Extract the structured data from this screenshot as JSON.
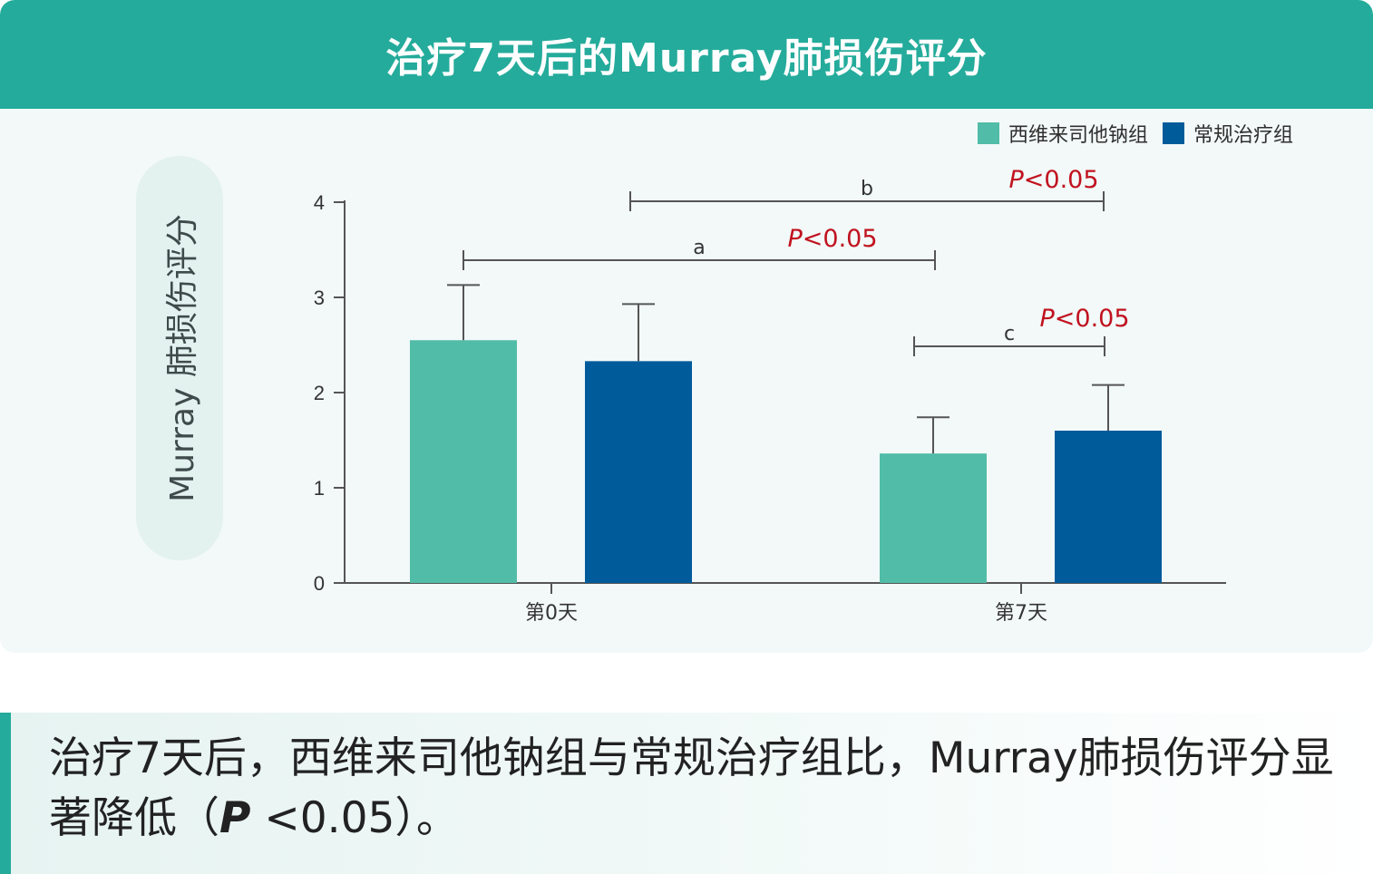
{
  "title": "治疗7天后的Murray肺损伤评分",
  "y_axis_label": "Murray 肺损伤评分",
  "colors": {
    "header": "#24ab9b",
    "group_a": "#51bca7",
    "group_b": "#005b9b",
    "sig": "#c1121f"
  },
  "legend": [
    {
      "label": "西维来司他钠组",
      "color": "#51bca7"
    },
    {
      "label": "常规治疗组",
      "color": "#005b9b"
    }
  ],
  "chart_data": {
    "type": "bar",
    "categories": [
      "第0天",
      "第7天"
    ],
    "series": [
      {
        "name": "西维来司他钠组",
        "values": [
          2.55,
          1.36
        ],
        "errors": [
          0.58,
          0.38
        ]
      },
      {
        "name": "常规治疗组",
        "values": [
          2.33,
          1.6
        ],
        "errors": [
          0.6,
          0.48
        ]
      }
    ],
    "ylim": [
      0,
      4
    ],
    "yticks": [
      "0",
      "1",
      "2",
      "3",
      "4"
    ],
    "comparisons": [
      {
        "label": "a",
        "p_text": "<0.05",
        "p_prefix": "P"
      },
      {
        "label": "b",
        "p_text": "<0.05",
        "p_prefix": "P"
      },
      {
        "label": "c",
        "p_text": "<0.05",
        "p_prefix": "P"
      }
    ]
  },
  "summary": {
    "line_pre": "治疗7天后，西维来司他钠组与常规治疗组比，Murray肺损伤评分显著降低（",
    "p_italic": "P",
    "line_post": " <0.05）。"
  }
}
